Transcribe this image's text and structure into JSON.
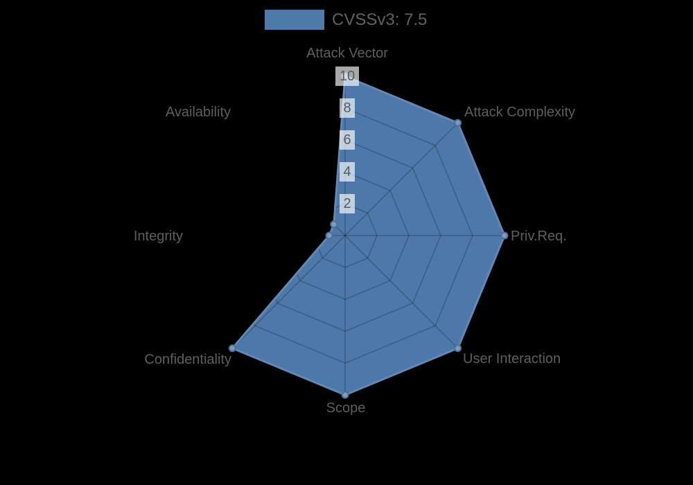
{
  "legend": {
    "items": [
      {
        "label": "CVSSv3: 7.5",
        "color": "#4d79ab"
      }
    ]
  },
  "chart_data": {
    "type": "radar",
    "title": "CVSSv3: 7.5",
    "categories": [
      "Attack Vector",
      "Attack Complexity",
      "Priv.Req.",
      "User Interaction",
      "Scope",
      "Confidentiality",
      "Integrity",
      "Availability"
    ],
    "series": [
      {
        "name": "CVSSv3: 7.5",
        "values": [
          10,
          10,
          10,
          10,
          10,
          10,
          1,
          1
        ]
      }
    ],
    "rlim": [
      0,
      10
    ],
    "ticks": [
      2,
      4,
      6,
      8,
      10
    ],
    "grid": true,
    "legend_position": "top",
    "colors": {
      "background": "#000000",
      "fill": "#4d78a9",
      "border": "#6289b3",
      "marker_fill": "#7d9ac0",
      "marker_border": "#4e6f96",
      "grid_line": "rgba(0,0,0,0.22)",
      "tick_backdrop": "rgba(255,255,255,0.66)",
      "tick_text": "#555b62",
      "label_text": "#5e5e5e",
      "legend_text": "#616161"
    }
  }
}
